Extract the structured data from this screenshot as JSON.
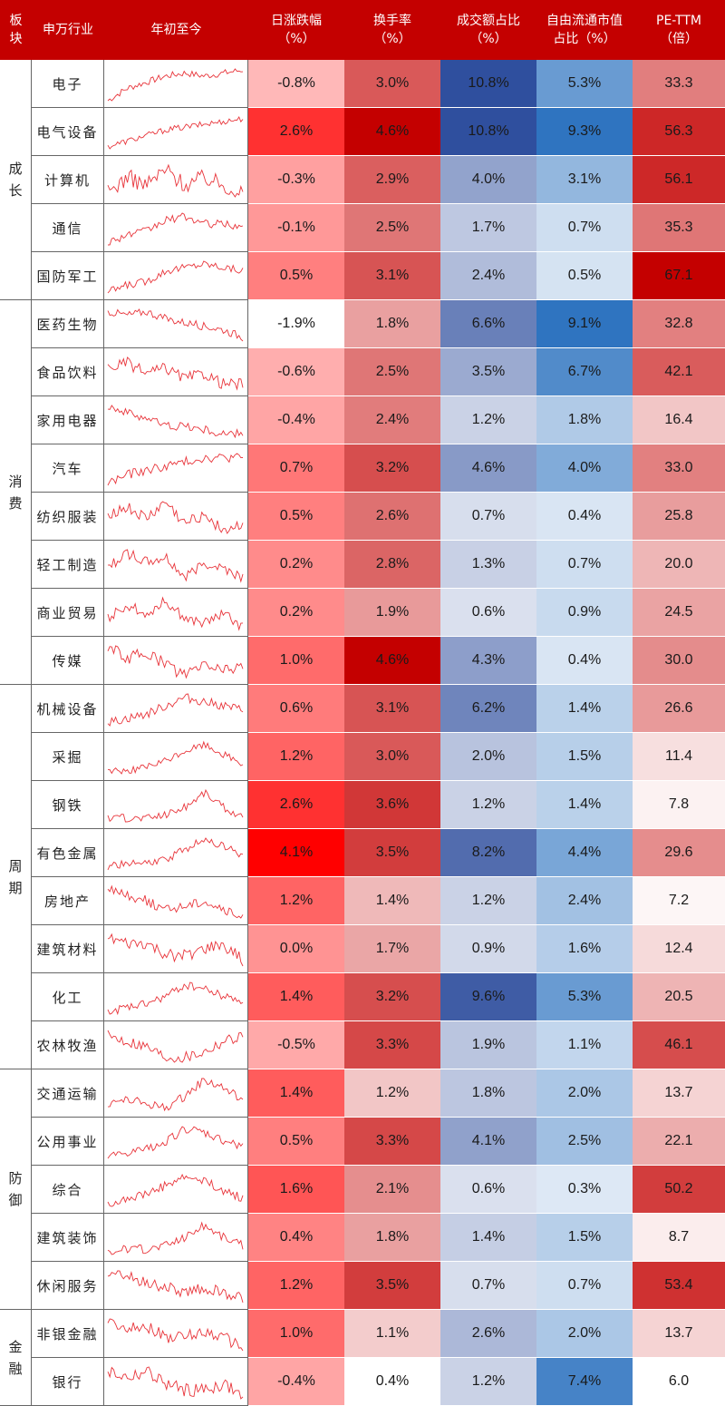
{
  "chart_data": {
    "type": "table",
    "columns": [
      "板块",
      "申万行业",
      "年初至今",
      "日涨跌幅（%）",
      "换手率（%）",
      "成交额占比（%）",
      "自由流通市值占比（%）",
      "PE-TTM（倍）"
    ],
    "header": {
      "sector": [
        "板",
        "块"
      ],
      "industry": "申万行业",
      "ytd": "年初至今",
      "change": [
        "日涨跌幅",
        "（%）"
      ],
      "turnover": [
        "换手率",
        "（%）"
      ],
      "amount": [
        "成交额占比",
        "（%）"
      ],
      "floatcap": [
        "自由流通市值",
        "占比（%）"
      ],
      "pe": [
        "PE-TTM",
        "（倍）"
      ]
    },
    "sectors": [
      {
        "name": [
          "成",
          "长"
        ],
        "rows": 5
      },
      {
        "name": [
          "消",
          "费"
        ],
        "rows": 8
      },
      {
        "name": [
          "周",
          "期"
        ],
        "rows": 8
      },
      {
        "name": [
          "防",
          "御"
        ],
        "rows": 5
      },
      {
        "name": [
          "金",
          "融"
        ],
        "rows": 2
      }
    ],
    "rows": [
      {
        "industry": "电子",
        "change": "-0.8%",
        "turnover": "3.0%",
        "amount": "10.8%",
        "floatcap": "5.3%",
        "pe": "33.3"
      },
      {
        "industry": "电气设备",
        "change": "2.6%",
        "turnover": "4.6%",
        "amount": "10.8%",
        "floatcap": "9.3%",
        "pe": "56.3"
      },
      {
        "industry": "计算机",
        "change": "-0.3%",
        "turnover": "2.9%",
        "amount": "4.0%",
        "floatcap": "3.1%",
        "pe": "56.1"
      },
      {
        "industry": "通信",
        "change": "-0.1%",
        "turnover": "2.5%",
        "amount": "1.7%",
        "floatcap": "0.7%",
        "pe": "35.3"
      },
      {
        "industry": "国防军工",
        "change": "0.5%",
        "turnover": "3.1%",
        "amount": "2.4%",
        "floatcap": "0.5%",
        "pe": "67.1"
      },
      {
        "industry": "医药生物",
        "change": "-1.9%",
        "turnover": "1.8%",
        "amount": "6.6%",
        "floatcap": "9.1%",
        "pe": "32.8"
      },
      {
        "industry": "食品饮料",
        "change": "-0.6%",
        "turnover": "2.5%",
        "amount": "3.5%",
        "floatcap": "6.7%",
        "pe": "42.1"
      },
      {
        "industry": "家用电器",
        "change": "-0.4%",
        "turnover": "2.4%",
        "amount": "1.2%",
        "floatcap": "1.8%",
        "pe": "16.4"
      },
      {
        "industry": "汽车",
        "change": "0.7%",
        "turnover": "3.2%",
        "amount": "4.6%",
        "floatcap": "4.0%",
        "pe": "33.0"
      },
      {
        "industry": "纺织服装",
        "change": "0.5%",
        "turnover": "2.6%",
        "amount": "0.7%",
        "floatcap": "0.4%",
        "pe": "25.8"
      },
      {
        "industry": "轻工制造",
        "change": "0.2%",
        "turnover": "2.8%",
        "amount": "1.3%",
        "floatcap": "0.7%",
        "pe": "20.0"
      },
      {
        "industry": "商业贸易",
        "change": "0.2%",
        "turnover": "1.9%",
        "amount": "0.6%",
        "floatcap": "0.9%",
        "pe": "24.5"
      },
      {
        "industry": "传媒",
        "change": "1.0%",
        "turnover": "4.6%",
        "amount": "4.3%",
        "floatcap": "0.4%",
        "pe": "30.0"
      },
      {
        "industry": "机械设备",
        "change": "0.6%",
        "turnover": "3.1%",
        "amount": "6.2%",
        "floatcap": "1.4%",
        "pe": "26.6"
      },
      {
        "industry": "采掘",
        "change": "1.2%",
        "turnover": "3.0%",
        "amount": "2.0%",
        "floatcap": "1.5%",
        "pe": "11.4"
      },
      {
        "industry": "钢铁",
        "change": "2.6%",
        "turnover": "3.6%",
        "amount": "1.2%",
        "floatcap": "1.4%",
        "pe": "7.8"
      },
      {
        "industry": "有色金属",
        "change": "4.1%",
        "turnover": "3.5%",
        "amount": "8.2%",
        "floatcap": "4.4%",
        "pe": "29.6"
      },
      {
        "industry": "房地产",
        "change": "1.2%",
        "turnover": "1.4%",
        "amount": "1.2%",
        "floatcap": "2.4%",
        "pe": "7.2"
      },
      {
        "industry": "建筑材料",
        "change": "0.0%",
        "turnover": "1.7%",
        "amount": "0.9%",
        "floatcap": "1.6%",
        "pe": "12.4"
      },
      {
        "industry": "化工",
        "change": "1.4%",
        "turnover": "3.2%",
        "amount": "9.6%",
        "floatcap": "5.3%",
        "pe": "20.5"
      },
      {
        "industry": "农林牧渔",
        "change": "-0.5%",
        "turnover": "3.3%",
        "amount": "1.9%",
        "floatcap": "1.1%",
        "pe": "46.1"
      },
      {
        "industry": "交通运输",
        "change": "1.4%",
        "turnover": "1.2%",
        "amount": "1.8%",
        "floatcap": "2.0%",
        "pe": "13.7"
      },
      {
        "industry": "公用事业",
        "change": "0.5%",
        "turnover": "3.3%",
        "amount": "4.1%",
        "floatcap": "2.5%",
        "pe": "22.1"
      },
      {
        "industry": "综合",
        "change": "1.6%",
        "turnover": "2.1%",
        "amount": "0.6%",
        "floatcap": "0.3%",
        "pe": "50.2"
      },
      {
        "industry": "建筑装饰",
        "change": "0.4%",
        "turnover": "1.8%",
        "amount": "1.4%",
        "floatcap": "1.5%",
        "pe": "8.7"
      },
      {
        "industry": "休闲服务",
        "change": "1.2%",
        "turnover": "3.5%",
        "amount": "0.7%",
        "floatcap": "0.7%",
        "pe": "53.4"
      },
      {
        "industry": "非银金融",
        "change": "1.0%",
        "turnover": "1.1%",
        "amount": "2.6%",
        "floatcap": "2.0%",
        "pe": "13.7"
      },
      {
        "industry": "银行",
        "change": "-0.4%",
        "turnover": "0.4%",
        "amount": "1.2%",
        "floatcap": "7.4%",
        "pe": "6.0"
      }
    ],
    "colors": {
      "header_bg": "#c40000",
      "header_text": "#ffffff",
      "red_high": "#c40000",
      "red_max": "#ff0000",
      "blue_high": "#2f4f9e",
      "blue_mid": "#2f74c0",
      "low": "#ffffff",
      "sparkline": "#e8343a"
    }
  }
}
